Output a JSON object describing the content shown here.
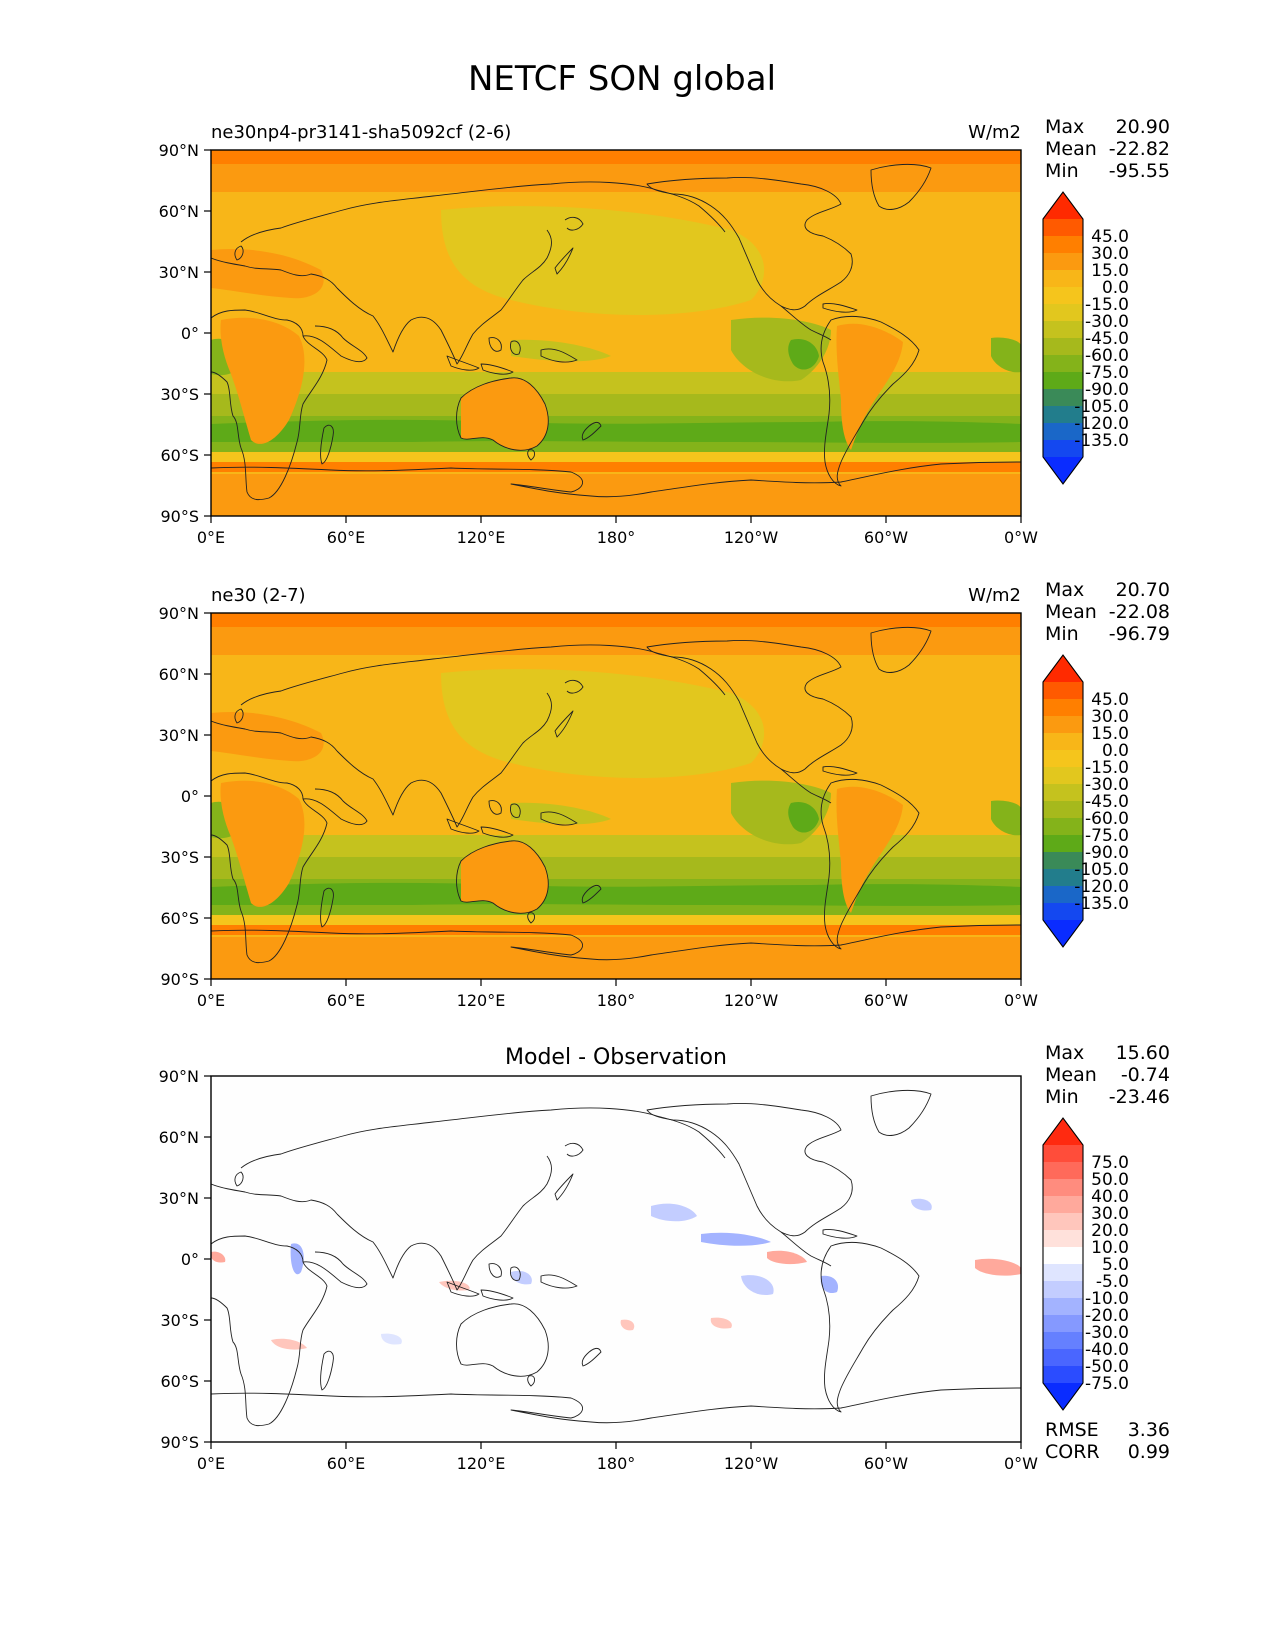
{
  "figure": {
    "title": "NETCF SON global"
  },
  "axes_ticks": {
    "lat": [
      "90°N",
      "60°N",
      "30°N",
      "0°",
      "30°S",
      "60°S",
      "90°S"
    ],
    "lon": [
      "0°E",
      "60°E",
      "120°E",
      "180°",
      "120°W",
      "60°W",
      "0°W"
    ]
  },
  "stat_labels": {
    "max": "Max",
    "mean": "Mean",
    "min": "Min",
    "rmse": "RMSE",
    "corr": "CORR"
  },
  "panels": [
    {
      "title_left": "ne30np4-pr3141-sha5092cf (2-6)",
      "units": "W/m2",
      "stats": {
        "max": "20.90",
        "mean": "-22.82",
        "min": "-95.55"
      },
      "colorbar": {
        "labels": [
          "45.0",
          "30.0",
          "15.0",
          "0.0",
          "-15.0",
          "-30.0",
          "-45.0",
          "-60.0",
          "-75.0",
          "-90.0",
          "-105.0",
          "-120.0",
          "-135.0"
        ],
        "colors": [
          "#ff2a00",
          "#ff5a00",
          "#ff7f00",
          "#fb9a10",
          "#f8b618",
          "#f5c51c",
          "#e2c71e",
          "#c5c21e",
          "#a6b91c",
          "#84b31a",
          "#5eaa18",
          "#3a8a58",
          "#227d8c",
          "#1a67c8",
          "#1448f0",
          "#0a2cff"
        ]
      }
    },
    {
      "title_left": "ne30 (2-7)",
      "units": "W/m2",
      "stats": {
        "max": "20.70",
        "mean": "-22.08",
        "min": "-96.79"
      },
      "colorbar": {
        "labels": [
          "45.0",
          "30.0",
          "15.0",
          "0.0",
          "-15.0",
          "-30.0",
          "-45.0",
          "-60.0",
          "-75.0",
          "-90.0",
          "-105.0",
          "-120.0",
          "-135.0"
        ],
        "colors": [
          "#ff2a00",
          "#ff5a00",
          "#ff7f00",
          "#fb9a10",
          "#f8b618",
          "#f5c51c",
          "#e2c71e",
          "#c5c21e",
          "#a6b91c",
          "#84b31a",
          "#5eaa18",
          "#3a8a58",
          "#227d8c",
          "#1a67c8",
          "#1448f0",
          "#0a2cff"
        ]
      }
    },
    {
      "title_center": "Model - Observation",
      "stats": {
        "max": "15.60",
        "mean": "-0.74",
        "min": "-23.46"
      },
      "rmse": "3.36",
      "corr": "0.99",
      "colorbar": {
        "labels": [
          "75.0",
          "50.0",
          "40.0",
          "30.0",
          "20.0",
          "10.0",
          "5.0",
          "-5.0",
          "-10.0",
          "-20.0",
          "-30.0",
          "-40.0",
          "-50.0",
          "-75.0"
        ],
        "colors": [
          "#ff2a10",
          "#ff4d3a",
          "#ff6a5a",
          "#ff8c7e",
          "#ffa99c",
          "#ffc6bc",
          "#ffe1db",
          "#ffffff",
          "#dfe5ff",
          "#c3cdff",
          "#a3b3ff",
          "#8599ff",
          "#6580ff",
          "#4a66ff",
          "#2b4cff",
          "#0a2cff"
        ]
      }
    }
  ]
}
